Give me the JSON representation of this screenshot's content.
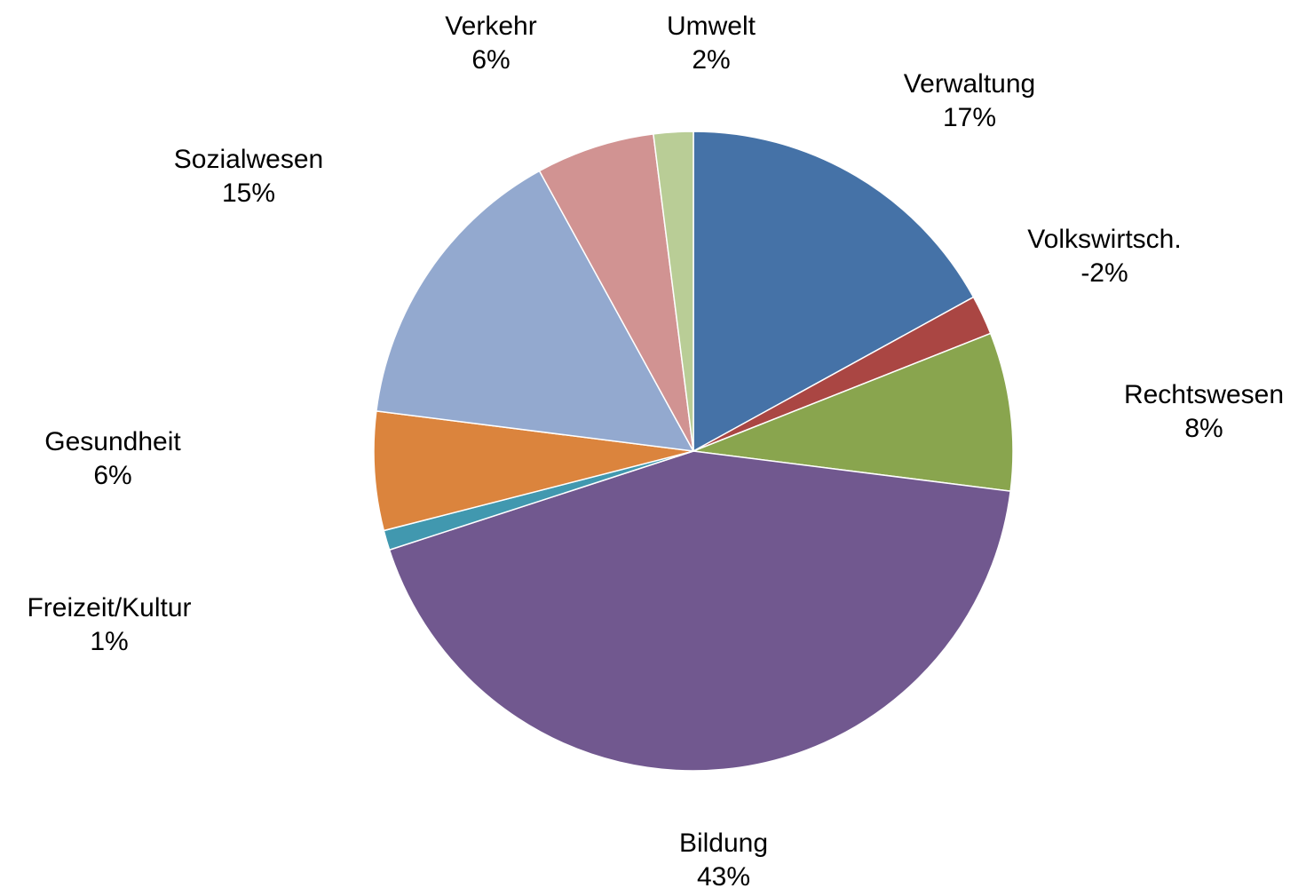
{
  "chart_data": {
    "type": "pie",
    "categories": [
      "Verwaltung",
      "Volkswirtsch.",
      "Rechtswesen",
      "Bildung",
      "Freizeit/Kultur",
      "Gesundheit",
      "Sozialwesen",
      "Verkehr",
      "Umwelt"
    ],
    "values": [
      17,
      -2,
      8,
      43,
      1,
      6,
      15,
      6,
      2
    ],
    "value_labels": [
      "17%",
      "-2%",
      "8%",
      "43%",
      "1%",
      "6%",
      "15%",
      "6%",
      "2%"
    ],
    "colors": [
      "#4572A7",
      "#AA4643",
      "#89A54E",
      "#71588F",
      "#4198AF",
      "#DB843D",
      "#93A9CF",
      "#D19392",
      "#B9CD96"
    ]
  }
}
